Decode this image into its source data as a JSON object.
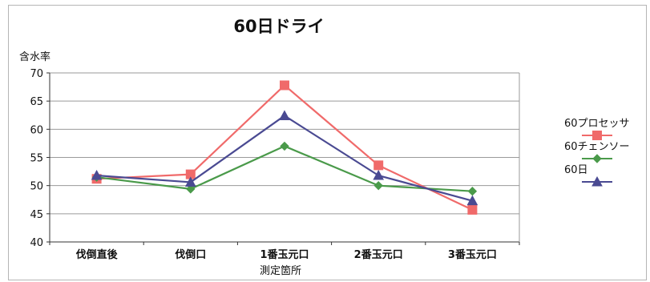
{
  "chart_data": {
    "type": "line",
    "title": "60日ドライ",
    "ylabel": "含水率",
    "xlabel": "測定箇所",
    "categories": [
      "伐倒直後",
      "伐倒口",
      "1番玉元口",
      "2番玉元口",
      "3番玉元口"
    ],
    "ylim": [
      40,
      70
    ],
    "yticks": [
      40,
      45,
      50,
      55,
      60,
      65,
      70
    ],
    "grid": true,
    "legend_position": "right",
    "series": [
      {
        "name": "60プロセッサ",
        "values": [
          51.2,
          52.0,
          67.8,
          53.6,
          45.7
        ],
        "color": "#f06a6a",
        "marker": "square"
      },
      {
        "name": "60チェンソー",
        "values": [
          51.5,
          49.4,
          57.0,
          50.0,
          49.0
        ],
        "color": "#4a9a4a",
        "marker": "diamond"
      },
      {
        "name": "60日",
        "values": [
          51.8,
          50.6,
          62.4,
          51.8,
          47.3
        ],
        "color": "#4a4a92",
        "marker": "triangle"
      }
    ]
  }
}
